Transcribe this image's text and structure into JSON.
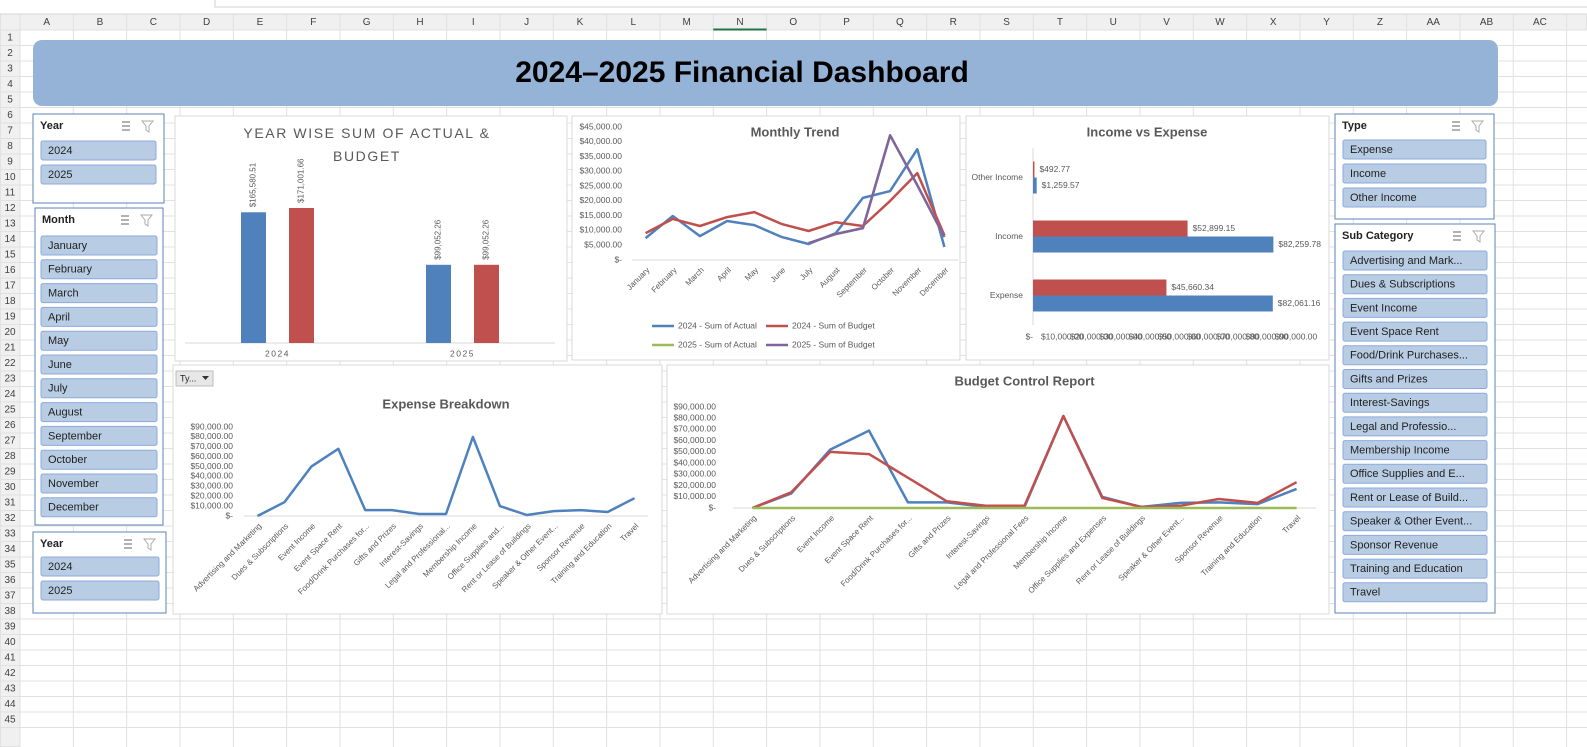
{
  "spreadsheet": {
    "columns": [
      "A",
      "B",
      "C",
      "D",
      "E",
      "F",
      "G",
      "H",
      "I",
      "J",
      "K",
      "L",
      "M",
      "N",
      "O",
      "P",
      "Q",
      "R",
      "S",
      "T",
      "U",
      "V",
      "W",
      "X",
      "Y",
      "Z",
      "AA",
      "AB",
      "AC"
    ],
    "rows": [
      1,
      2,
      3,
      4,
      5,
      6,
      7,
      8,
      9,
      10,
      11,
      12,
      13,
      14,
      15,
      16,
      17,
      18,
      19,
      20,
      21,
      22,
      23,
      24,
      25,
      26,
      27,
      28,
      29,
      30,
      31,
      32,
      33,
      34,
      35,
      36,
      37,
      38,
      39,
      40,
      41,
      42,
      43,
      44,
      45
    ]
  },
  "header": {
    "title": "2024–2025 Financial Dashboard"
  },
  "slicers": [
    {
      "title": "Year",
      "items": [
        "2024",
        "2025"
      ]
    },
    {
      "title": "Month",
      "items": [
        "January",
        "February",
        "March",
        "April",
        "May",
        "June",
        "July",
        "August",
        "September",
        "October",
        "November",
        "December"
      ]
    },
    {
      "title": "Year",
      "items": [
        "2024",
        "2025"
      ]
    },
    {
      "title": "Type",
      "items": [
        "Expense",
        "Income",
        "Other Income"
      ]
    },
    {
      "title": "Sub Category",
      "items": [
        "Advertising and Mark...",
        "Dues & Subscriptions",
        "Event Income",
        "Event Space Rent",
        "Food/Drink Purchases...",
        "Gifts and Prizes",
        "Interest-Savings",
        "Legal and Professio...",
        "Membership Income",
        "Office Supplies and E...",
        "Rent or Lease of Build...",
        "Speaker & Other Event...",
        "Sponsor Revenue",
        "Training and Education",
        "Travel"
      ]
    }
  ],
  "filter_button": "Ty...",
  "chart_data": [
    {
      "type": "bar",
      "title": "YEAR WISE SUM OF ACTUAL & BUDGET",
      "categories": [
        "2024",
        "2025"
      ],
      "series": [
        {
          "color": "#4f81bd",
          "values": [
            165580.51,
            99052.26
          ],
          "value_labels": [
            "$165,580.51",
            "$99,052.26"
          ]
        },
        {
          "color": "#c0504d",
          "values": [
            171001.66,
            99052.26
          ],
          "value_labels": [
            "$171,001.66",
            "$99,052.26"
          ]
        }
      ]
    },
    {
      "type": "line",
      "title": "Monthly Trend",
      "categories": [
        "January",
        "February",
        "March",
        "April",
        "May",
        "June",
        "July",
        "August",
        "September",
        "October",
        "November",
        "December"
      ],
      "ylim": [
        0,
        45000
      ],
      "yticks": [
        {
          "value": 0,
          "label": "$-"
        },
        {
          "value": 5000,
          "label": "$5,000.00"
        },
        {
          "value": 10000,
          "label": "$10,000.00"
        },
        {
          "value": 15000,
          "label": "$15,000.00"
        },
        {
          "value": 20000,
          "label": "$20,000.00"
        },
        {
          "value": 25000,
          "label": "$25,000.00"
        },
        {
          "value": 30000,
          "label": "$30,000.00"
        },
        {
          "value": 35000,
          "label": "$35,000.00"
        },
        {
          "value": 40000,
          "label": "$40,000.00"
        },
        {
          "value": 45000,
          "label": "$45,000.00"
        }
      ],
      "legend": "bottom",
      "series": [
        {
          "name": "2024 - Sum of Actual",
          "color": "#4f81bd",
          "values": [
            7400,
            14900,
            8100,
            13200,
            11800,
            7800,
            5400,
            9100,
            21000,
            23300,
            37500,
            4400
          ]
        },
        {
          "name": "2024 - Sum of Budget",
          "color": "#c0504d",
          "values": [
            9100,
            13900,
            11500,
            14500,
            16200,
            12200,
            9800,
            12800,
            11500,
            20000,
            29400,
            8400
          ]
        },
        {
          "name": "2025 - Sum of Actual",
          "color": "#9bbb59",
          "values": [
            null,
            null,
            null,
            null,
            null,
            null,
            5700,
            8800,
            10800,
            42200,
            25300,
            7800
          ]
        },
        {
          "name": "2025 - Sum of Budget",
          "color": "#8064a2",
          "values": [
            null,
            null,
            null,
            null,
            null,
            null,
            5700,
            8800,
            10800,
            42200,
            25300,
            7800
          ]
        }
      ]
    },
    {
      "type": "hbar",
      "title": "Income vs Expense",
      "categories": [
        "Expense",
        "Income",
        "Other Income"
      ],
      "xlim": [
        0,
        90000
      ],
      "xticks": [
        {
          "value": 0,
          "label": "$-"
        },
        {
          "value": 10000,
          "label": "$10,000.00"
        },
        {
          "value": 20000,
          "label": "$20,000.00"
        },
        {
          "value": 30000,
          "label": "$30,000.00"
        },
        {
          "value": 40000,
          "label": "$40,000.00"
        },
        {
          "value": 50000,
          "label": "$50,000.00"
        },
        {
          "value": 60000,
          "label": "$60,000.00"
        },
        {
          "value": 70000,
          "label": "$70,000.00"
        },
        {
          "value": 80000,
          "label": "$80,000.00"
        },
        {
          "value": 90000,
          "label": "$90,000.00"
        }
      ],
      "series": [
        {
          "color": "#c0504d",
          "values": [
            45660.34,
            52899.15,
            492.77
          ],
          "value_labels": [
            "$45,660.34",
            "$52,899.15",
            "$492.77"
          ]
        },
        {
          "color": "#4f81bd",
          "values": [
            82061.16,
            82259.78,
            1259.57
          ],
          "value_labels": [
            "$82,061.16",
            "$82,259.78",
            "$1,259.57"
          ]
        }
      ]
    },
    {
      "type": "line",
      "title": "Expense Breakdown",
      "categories": [
        "Advertising and Marketing",
        "Dues & Subscriptions",
        "Event Income",
        "Event Space Rent",
        "Food/Drink Purchases for...",
        "Gifts and Prizes",
        "Interest-Savings",
        "Legal and Professional...",
        "Membership Income",
        "Office Supplies and...",
        "Rent or Lease of Buildings",
        "Speaker & Other Event...",
        "Sponsor Revenue",
        "Training and Education",
        "Travel"
      ],
      "ylim": [
        0,
        90000
      ],
      "yticks": [
        {
          "value": 0,
          "label": "$-"
        },
        {
          "value": 10000,
          "label": "$10,000.00"
        },
        {
          "value": 20000,
          "label": "$20,000.00"
        },
        {
          "value": 30000,
          "label": "$30,000.00"
        },
        {
          "value": 40000,
          "label": "$40,000.00"
        },
        {
          "value": 50000,
          "label": "$50,000.00"
        },
        {
          "value": 60000,
          "label": "$60,000.00"
        },
        {
          "value": 70000,
          "label": "$70,000.00"
        },
        {
          "value": 80000,
          "label": "$80,000.00"
        },
        {
          "value": 90000,
          "label": "$90,000.00"
        }
      ],
      "series": [
        {
          "color": "#4f81bd",
          "values": [
            0,
            14000,
            50000,
            68000,
            6000,
            6000,
            2000,
            2000,
            80000,
            10000,
            1000,
            5000,
            6000,
            4000,
            18000
          ]
        }
      ]
    },
    {
      "type": "line",
      "title": "Budget Control Report",
      "categories": [
        "Advertising and Marketing",
        "Dues & Subscriptions",
        "Event Income",
        "Event Space Rent",
        "Food/Drink Purchases for...",
        "Gifts and Prizes",
        "Interest-Savings",
        "Legal and Professional Fees",
        "Membership Income",
        "Office Supplies and Expenses",
        "Rent or Lease of Buildings",
        "Speaker & Other Event...",
        "Sponsor Revenue",
        "Training and Education",
        "Travel"
      ],
      "ylim": [
        0,
        90000
      ],
      "yticks": [
        {
          "value": 0,
          "label": "$-"
        },
        {
          "value": 10000,
          "label": "$10,000.00"
        },
        {
          "value": 20000,
          "label": "$20,000.00"
        },
        {
          "value": 30000,
          "label": "$30,000.00"
        },
        {
          "value": 40000,
          "label": "$40,000.00"
        },
        {
          "value": 50000,
          "label": "$50,000.00"
        },
        {
          "value": 60000,
          "label": "$60,000.00"
        },
        {
          "value": 70000,
          "label": "$70,000.00"
        },
        {
          "value": 80000,
          "label": "$80,000.00"
        },
        {
          "value": 90000,
          "label": "$90,000.00"
        }
      ],
      "series": [
        {
          "color": "#4f81bd",
          "values": [
            0,
            13000,
            52000,
            69000,
            5000,
            5000,
            1000,
            1000,
            82000,
            10000,
            1000,
            4500,
            5000,
            3500,
            17000
          ]
        },
        {
          "color": "#c0504d",
          "values": [
            0,
            14000,
            50000,
            48000,
            27000,
            6000,
            2000,
            2000,
            82000,
            9000,
            1000,
            2000,
            8000,
            4500,
            23000
          ]
        },
        {
          "color": "#9bbb59",
          "values": [
            0,
            0,
            0,
            0,
            0,
            0,
            0,
            0,
            0,
            0,
            0,
            0,
            0,
            0,
            0
          ]
        }
      ]
    }
  ]
}
